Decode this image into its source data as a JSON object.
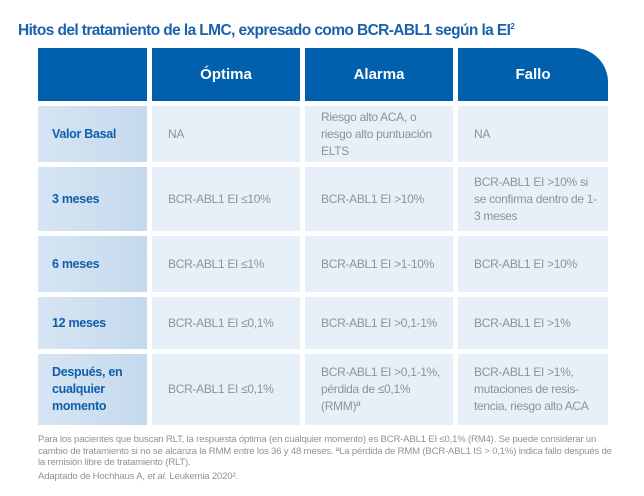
{
  "title": "Hitos del tratamiento de la LMC, expresado como BCR-ABL1 según la EI",
  "title_sup": "2",
  "colors": {
    "header": "#0060ae",
    "title": "#1a62ad",
    "row_label_bg": "#c5d9ed",
    "cell_bg": "#e7eff8"
  },
  "table": {
    "headers": [
      "",
      "Óptima",
      "Alarma",
      "Fallo"
    ],
    "rows": [
      {
        "label": "Valor Basal",
        "cells": [
          "NA",
          "Riesgo alto ACA, o riesgo alto puntuación ELTS",
          "NA"
        ]
      },
      {
        "label": "3 meses",
        "cells": [
          "BCR-ABL1 EI ≤10%",
          "BCR-ABL1 EI >10%",
          "BCR-ABL1 EI >10% si se confirma dentro de 1-3 meses"
        ]
      },
      {
        "label": "6 meses",
        "cells": [
          "BCR-ABL1 EI ≤1%",
          "BCR-ABL1 EI >1-10%",
          "BCR-ABL1 EI >10%"
        ]
      },
      {
        "label": "12 meses",
        "cells": [
          "BCR-ABL1 EI ≤0,1%",
          "BCR-ABL1 EI >0,1-1%",
          "BCR-ABL1 EI >1%"
        ]
      },
      {
        "label": "Después, en cualquier momento",
        "cells": [
          "BCR-ABL1 EI ≤0,1%",
          "BCR-ABL1 EI >0,1-1%, pérdida de ≤0,1% (RMM)ª",
          "BCR-ABL1 EI >1%, mutaciones de resis-tencia, riesgo alto ACA"
        ]
      }
    ]
  },
  "footnote": "Para los pacientes que buscan RLT, la respuesta óptima (en cualquier momento) es BCR-ABL1 EI ≤0,1% (RM4).  Se puede considerar un cambio de tratamiento si no se alcanza la RMM entre los 36 y 48 meses. ªLa pérdida de RMM (BCR-ABL1 IS > 0,1%) indica fallo después de la remisión libre de tratamiento (RLT).",
  "source_prefix": "Adaptado de Hochhaus A, ",
  "source_italic": "et al.",
  "source_suffix": " Leukemia 2020².",
  "source_text": "Adaptado de Hochhaus A, et al. Leukemia 2020²."
}
